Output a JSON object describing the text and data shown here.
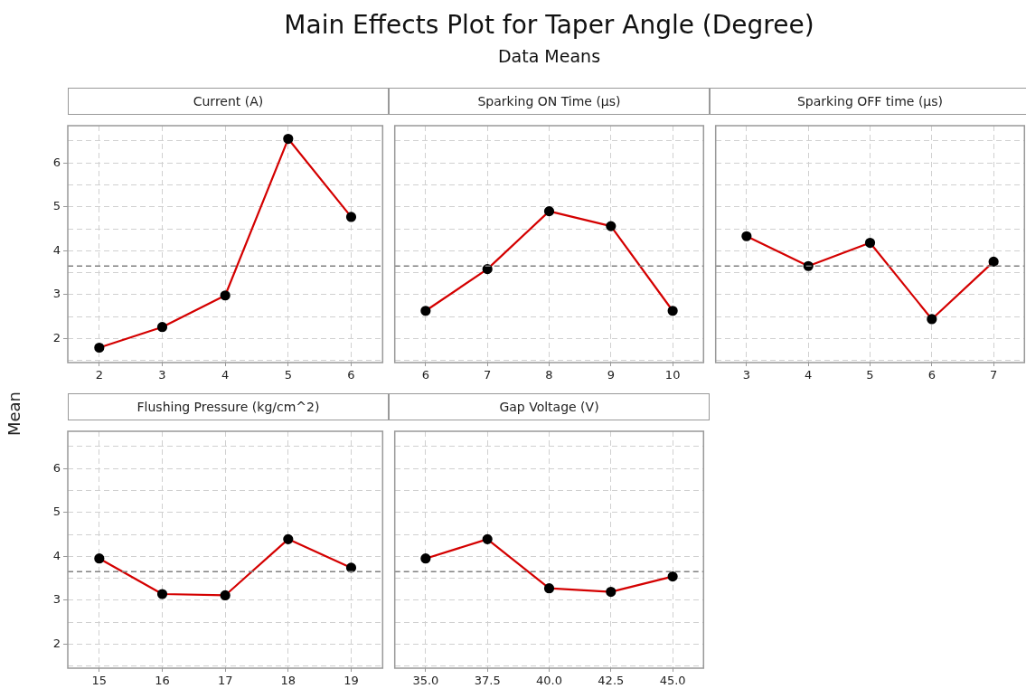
{
  "chart_data": [
    {
      "type": "other",
      "title": "Main Effects Plot for Taper Angle (Degree)",
      "subtitle": "Data Means"
    },
    {
      "type": "line",
      "title": "Current (A)",
      "ylabel": "Mean",
      "categories": [
        "2",
        "3",
        "4",
        "5",
        "6"
      ],
      "series": [
        {
          "color": "#d40000",
          "values": [
            1.79,
            2.26,
            2.98,
            6.55,
            4.77
          ]
        }
      ],
      "ylim": [
        1.45,
        6.85
      ],
      "yticks": [
        {
          "value": 1.5,
          "label": null
        },
        2,
        {
          "value": 2.5,
          "label": null
        },
        3,
        {
          "value": 3.5,
          "label": null
        },
        4,
        {
          "value": 4.5,
          "label": null
        },
        5,
        {
          "value": 5.5,
          "label": null
        },
        6,
        {
          "value": 6.5,
          "label": null
        }
      ],
      "ref_lines": [
        {
          "axis": "y",
          "value": 3.65,
          "color": "#808080",
          "line_style": "dashed"
        }
      ],
      "grid": true,
      "marker": "circle",
      "line_style": "solid"
    },
    {
      "type": "line",
      "title": "Sparking ON Time (µs)",
      "categories": [
        "6",
        "7",
        "8",
        "9",
        "10"
      ],
      "series": [
        {
          "color": "#d40000",
          "values": [
            2.63,
            3.58,
            4.9,
            4.56,
            2.63
          ]
        }
      ],
      "ylim": [
        1.45,
        6.85
      ],
      "yticks": [
        {
          "value": 1.5,
          "label": null
        },
        2,
        {
          "value": 2.5,
          "label": null
        },
        3,
        {
          "value": 3.5,
          "label": null
        },
        4,
        {
          "value": 4.5,
          "label": null
        },
        5,
        {
          "value": 5.5,
          "label": null
        },
        6,
        {
          "value": 6.5,
          "label": null
        }
      ],
      "tick_labels": "x",
      "ref_lines": [
        {
          "axis": "y",
          "value": 3.65,
          "color": "#808080",
          "line_style": "dashed"
        }
      ],
      "grid": true,
      "marker": "circle",
      "line_style": "solid"
    },
    {
      "type": "line",
      "title": "Sparking OFF time (µs)",
      "categories": [
        "3",
        "4",
        "5",
        "6",
        "7"
      ],
      "series": [
        {
          "color": "#d40000",
          "values": [
            4.33,
            3.65,
            4.18,
            2.44,
            3.75
          ]
        }
      ],
      "ylim": [
        1.45,
        6.85
      ],
      "yticks": [
        {
          "value": 1.5,
          "label": null
        },
        2,
        {
          "value": 2.5,
          "label": null
        },
        3,
        {
          "value": 3.5,
          "label": null
        },
        4,
        {
          "value": 4.5,
          "label": null
        },
        5,
        {
          "value": 5.5,
          "label": null
        },
        6,
        {
          "value": 6.5,
          "label": null
        }
      ],
      "tick_labels": "x",
      "ref_lines": [
        {
          "axis": "y",
          "value": 3.65,
          "color": "#808080",
          "line_style": "dashed"
        }
      ],
      "grid": true,
      "marker": "circle",
      "line_style": "solid"
    },
    {
      "type": "line",
      "title": "Flushing Pressure (kg/cm^2)",
      "categories": [
        "15",
        "16",
        "17",
        "18",
        "19"
      ],
      "series": [
        {
          "color": "#d40000",
          "values": [
            3.95,
            3.14,
            3.11,
            4.39,
            3.74
          ]
        }
      ],
      "ylim": [
        1.45,
        6.85
      ],
      "yticks": [
        {
          "value": 1.5,
          "label": null
        },
        2,
        {
          "value": 2.5,
          "label": null
        },
        3,
        {
          "value": 3.5,
          "label": null
        },
        4,
        {
          "value": 4.5,
          "label": null
        },
        5,
        {
          "value": 5.5,
          "label": null
        },
        6,
        {
          "value": 6.5,
          "label": null
        }
      ],
      "ref_lines": [
        {
          "axis": "y",
          "value": 3.65,
          "color": "#808080",
          "line_style": "dashed"
        }
      ],
      "grid": true,
      "marker": "circle",
      "line_style": "solid"
    },
    {
      "type": "line",
      "title": "Gap Voltage (V)",
      "categories": [
        "35.0",
        "37.5",
        "40.0",
        "42.5",
        "45.0"
      ],
      "series": [
        {
          "color": "#d40000",
          "values": [
            3.95,
            4.39,
            3.27,
            3.19,
            3.54
          ]
        }
      ],
      "ylim": [
        1.45,
        6.85
      ],
      "yticks": [
        {
          "value": 1.5,
          "label": null
        },
        2,
        {
          "value": 2.5,
          "label": null
        },
        3,
        {
          "value": 3.5,
          "label": null
        },
        4,
        {
          "value": 4.5,
          "label": null
        },
        5,
        {
          "value": 5.5,
          "label": null
        },
        6,
        {
          "value": 6.5,
          "label": null
        }
      ],
      "tick_labels": "x",
      "ref_lines": [
        {
          "axis": "y",
          "value": 3.65,
          "color": "#808080",
          "line_style": "dashed"
        }
      ],
      "grid": true,
      "marker": "circle",
      "line_style": "solid"
    }
  ]
}
